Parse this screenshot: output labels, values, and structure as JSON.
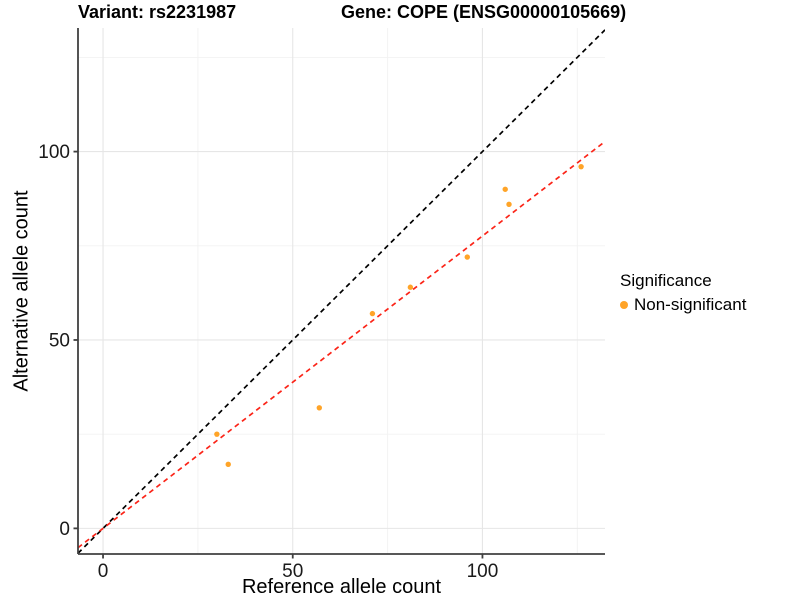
{
  "chart_data": {
    "type": "scatter",
    "titles": {
      "left": "Variant: rs2231987",
      "right": "Gene: COPE (ENSG00000105669)"
    },
    "xlabel": "Reference allele count",
    "ylabel": "Alternative allele count",
    "xlim": [
      -6.6,
      132.3
    ],
    "ylim": [
      -6.8,
      132.8
    ],
    "x_ticks": [
      0,
      50,
      100
    ],
    "y_ticks": [
      0,
      50,
      100
    ],
    "x_minor_ticks": [
      25,
      75,
      125
    ],
    "y_minor_ticks": [
      25,
      75,
      125
    ],
    "grid": "major+minor",
    "legend_position": "right",
    "series": [
      {
        "name": "Non-significant",
        "color": "#FFA428",
        "marker": "circle",
        "points": [
          {
            "x": 30,
            "y": 25
          },
          {
            "x": 33,
            "y": 17
          },
          {
            "x": 57,
            "y": 32
          },
          {
            "x": 71,
            "y": 57
          },
          {
            "x": 81,
            "y": 64
          },
          {
            "x": 96,
            "y": 72
          },
          {
            "x": 106,
            "y": 90
          },
          {
            "x": 107,
            "y": 86
          },
          {
            "x": 126,
            "y": 96
          }
        ]
      }
    ],
    "lines": [
      {
        "name": "identity-line",
        "slope": 1,
        "intercept": 0,
        "color": "#000000",
        "style": "dashed"
      },
      {
        "name": "fit-line",
        "slope": 0.776,
        "intercept": 0,
        "color": "#FB2418",
        "style": "dashed"
      }
    ],
    "legend": {
      "title": "Significance",
      "items": [
        {
          "label": "Non-significant",
          "color": "#FFA428"
        }
      ]
    },
    "colors": {
      "grid_major": "#E6E6E6",
      "grid_minor": "#F2F2F2",
      "axis_line": "#404040",
      "tick_text": "#1A1A1A",
      "background": "#FFFFFF"
    }
  }
}
